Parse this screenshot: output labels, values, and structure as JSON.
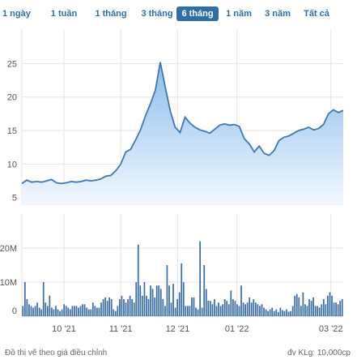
{
  "range_tabs": [
    {
      "label": "1 ngày"
    },
    {
      "label": "1 tuần"
    },
    {
      "label": "1 tháng"
    },
    {
      "label": "3 tháng"
    },
    {
      "label": "6 tháng",
      "active": true
    },
    {
      "label": "1 năm"
    },
    {
      "label": "3 năm"
    },
    {
      "label": "Tất cả"
    }
  ],
  "footer": {
    "note": "Đồ thị vẽ theo giá điều chỉnh",
    "unit": "đv KLg: 10,000cp"
  },
  "colors": {
    "line": "#3c78b4",
    "area_top": "#8dbcec",
    "area_bottom": "#f2f8fe",
    "volume_bar": "#3a6ea5",
    "active_tab": "#2f6fa6",
    "grid": "#e3e3e3"
  },
  "chart_data": [
    {
      "type": "area",
      "x_ticks": [
        "10 '21",
        "11 '21",
        "12 '21",
        "01 '22",
        "03 '22"
      ],
      "y_ticks": [
        "5",
        "10",
        "15",
        "20",
        "25"
      ],
      "ylim": [
        4,
        30
      ],
      "grid": true,
      "x_index_range": [
        0,
        130
      ],
      "x_tick_positions": [
        17,
        40,
        63,
        87,
        125
      ],
      "x": [
        0,
        2,
        4,
        6,
        8,
        10,
        12,
        14,
        16,
        18,
        20,
        22,
        24,
        26,
        28,
        30,
        32,
        34,
        36,
        38,
        40,
        42,
        44,
        46,
        48,
        50,
        52,
        54,
        56,
        58,
        60,
        62,
        64,
        66,
        68,
        70,
        72,
        74,
        76,
        78,
        80,
        82,
        84,
        86,
        88,
        90,
        92,
        94,
        96,
        98,
        100,
        102,
        104,
        106,
        108,
        110,
        112,
        114,
        116,
        118,
        120,
        122,
        124,
        126,
        128,
        130
      ],
      "values": [
        7.1,
        7.6,
        7.3,
        7.4,
        7.3,
        7.5,
        7.7,
        7.2,
        7.1,
        7.2,
        7.4,
        7.3,
        7.4,
        7.6,
        7.5,
        7.6,
        7.8,
        8.2,
        8.3,
        9.0,
        10.0,
        11.8,
        12.2,
        13.6,
        15.1,
        17.2,
        19.0,
        21.0,
        25.2,
        21.5,
        18.0,
        15.5,
        14.7,
        17.0,
        16.1,
        15.5,
        15.1,
        14.9,
        14.6,
        15.2,
        15.8,
        16.0,
        15.8,
        15.9,
        15.6,
        13.8,
        13.0,
        11.8,
        12.7,
        11.6,
        11.3,
        12.0,
        13.5,
        14.0,
        14.2,
        14.6,
        15.0,
        15.2,
        15.5,
        15.1,
        15.3,
        15.9,
        17.5,
        18.1,
        17.7,
        18.0
      ]
    },
    {
      "type": "bar",
      "x_ticks": [
        "10 '21",
        "11 '21",
        "12 '21",
        "01 '22",
        "03 '22"
      ],
      "y_ticks": [
        "0",
        "10M",
        "20M"
      ],
      "ylim": [
        0,
        30
      ],
      "grid": true,
      "x_index_range": [
        0,
        130
      ],
      "x_tick_positions": [
        17,
        40,
        63,
        87,
        125
      ],
      "values": [
        3,
        10,
        5,
        3.5,
        3,
        2.5,
        3,
        4,
        2.5,
        2,
        10,
        4,
        3,
        6,
        2.5,
        2,
        3,
        2,
        1.5,
        2,
        3.5,
        3,
        2.5,
        2,
        3,
        3,
        3,
        2.5,
        3,
        3.5,
        3.5,
        2.5,
        2,
        2,
        4,
        3,
        2.5,
        2.5,
        4,
        5,
        5.5,
        4.5,
        5.5,
        5,
        2,
        1.5,
        3,
        5,
        6,
        5,
        4,
        5,
        6,
        5,
        4,
        10,
        21,
        9,
        6,
        10,
        6,
        5,
        9,
        8,
        5.5,
        9,
        9,
        8,
        5,
        3,
        15,
        9,
        4,
        9.5,
        2.5,
        5,
        7,
        15.5,
        10,
        3,
        3,
        3,
        5.5,
        5.5,
        2.5,
        2,
        22,
        2.5,
        15,
        8,
        4.5,
        4.5,
        3.5,
        5,
        3,
        4,
        3,
        3.5,
        5,
        4.5,
        3.5,
        7.5,
        5,
        4.5,
        3.5,
        3,
        9,
        4,
        3.5,
        4,
        5.5,
        4,
        5,
        4,
        3.5,
        3,
        3.5,
        2.5,
        2,
        1.5,
        2,
        2.5,
        1.5,
        2,
        1.2,
        2.5,
        1.8,
        1.5,
        2,
        1.3,
        1.5,
        3,
        6,
        6.5,
        5.5,
        3,
        7,
        3.5,
        3,
        5,
        4.5,
        5.5,
        3,
        3,
        2.5,
        3.5,
        5,
        3.5,
        6,
        7,
        6,
        4,
        4,
        3.5,
        4.5,
        5
      ]
    }
  ]
}
